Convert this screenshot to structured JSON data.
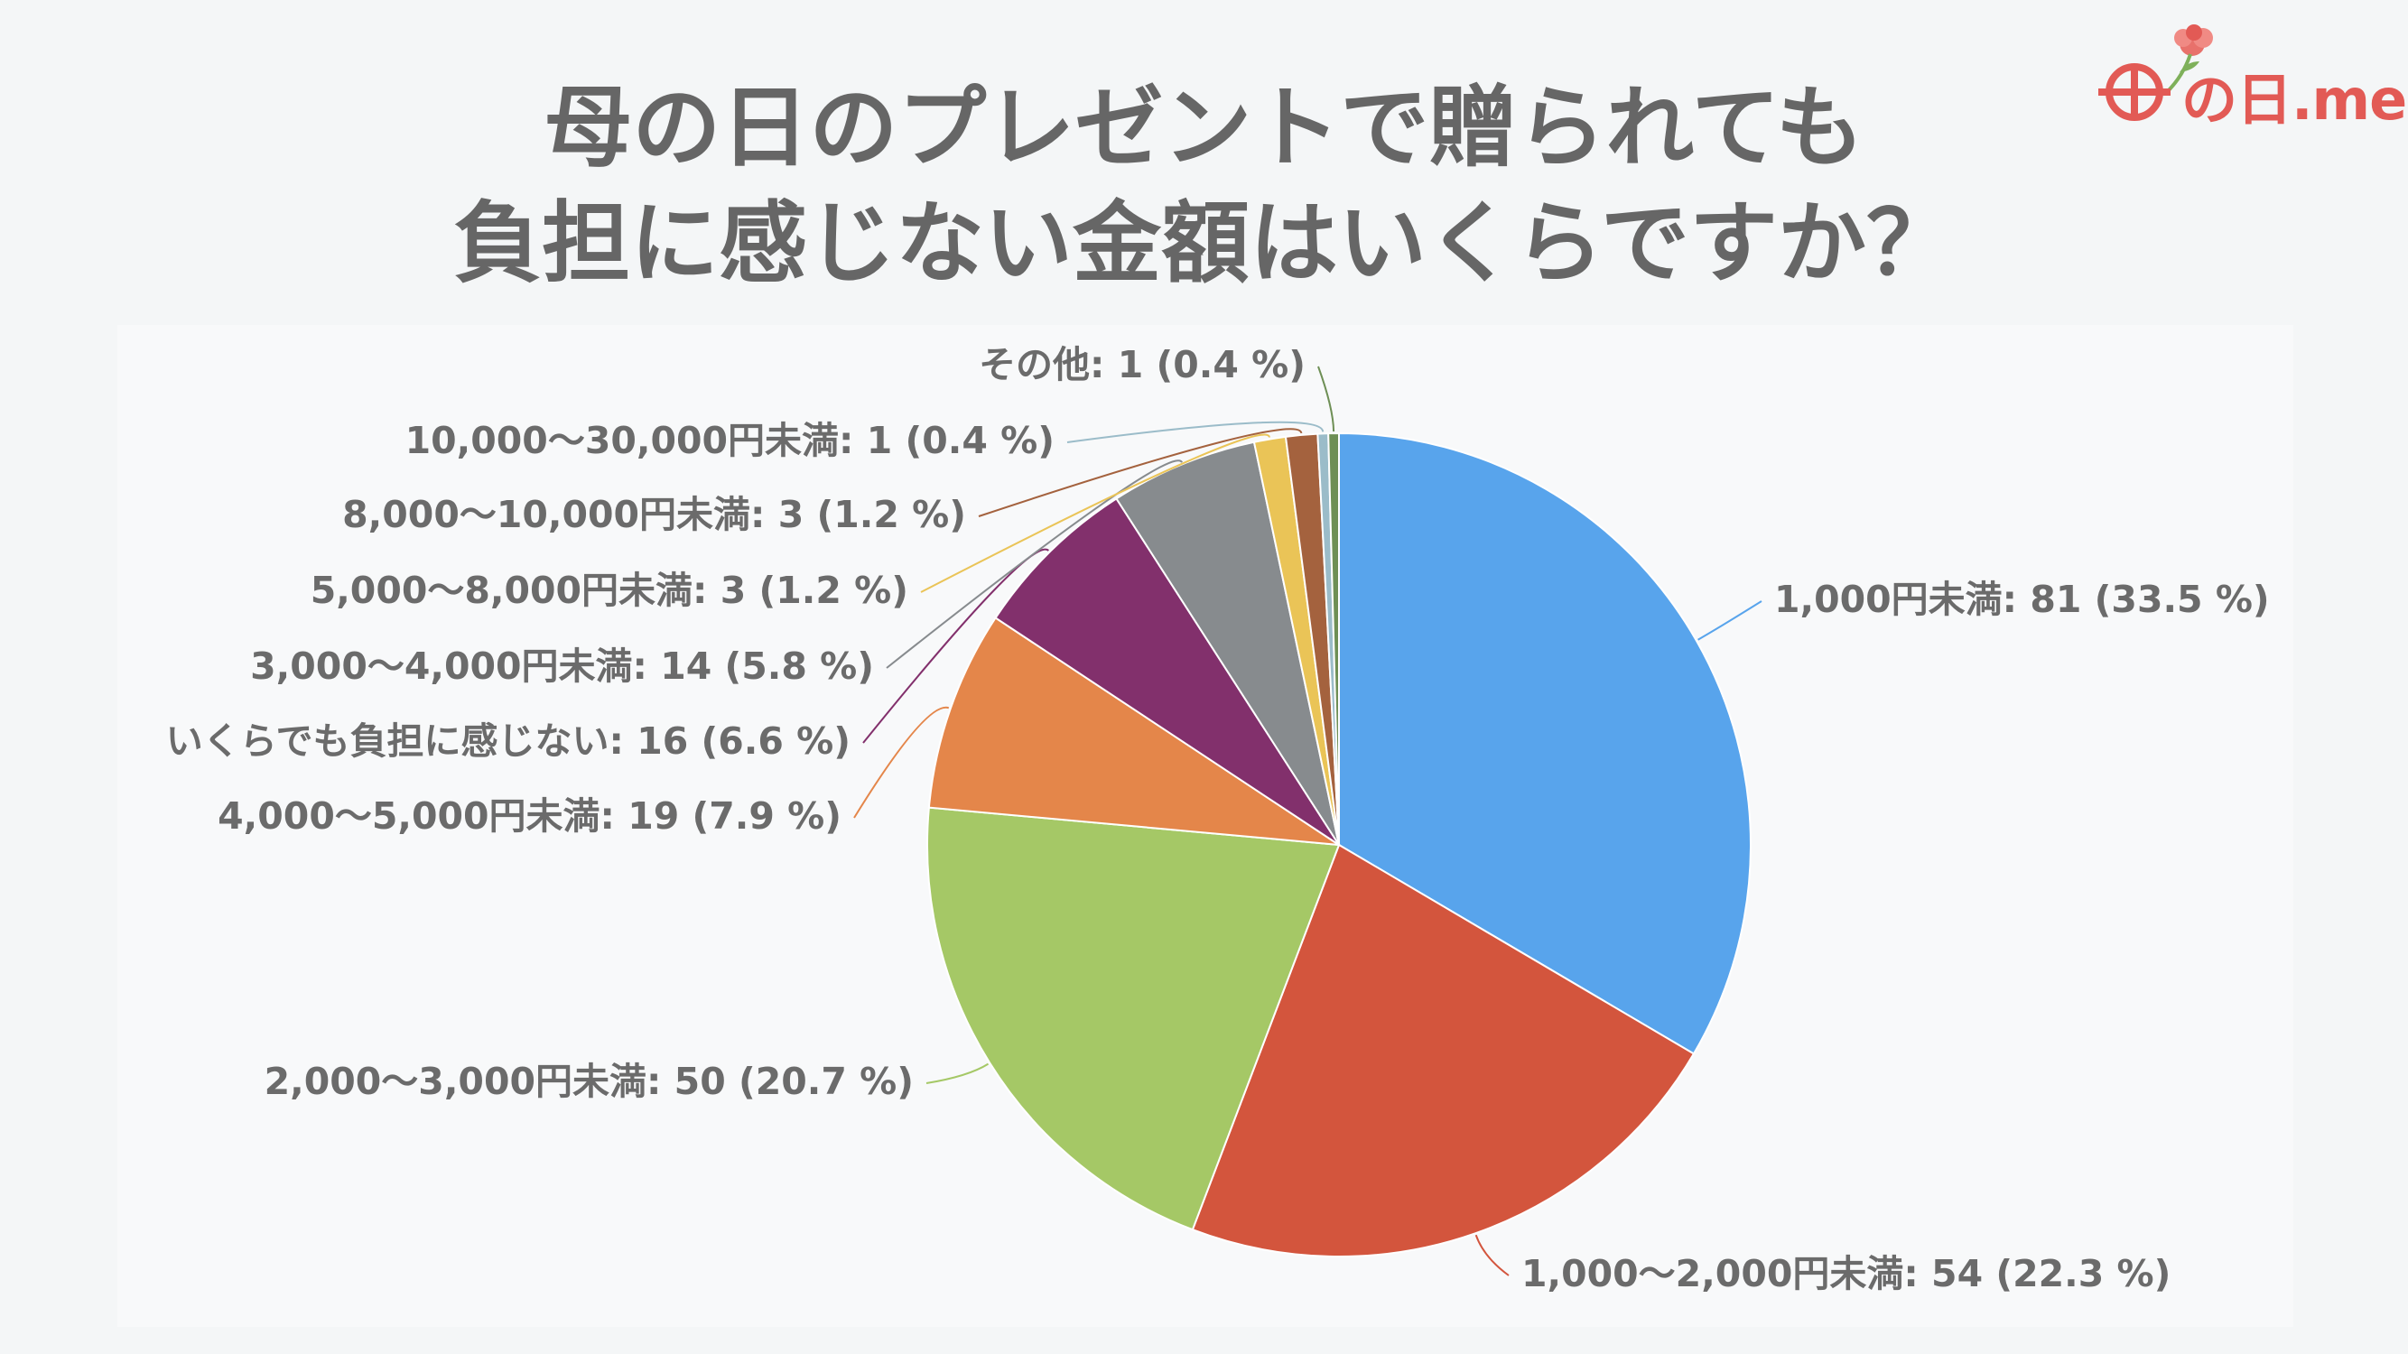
{
  "title": {
    "line1": "母の日のプレゼントで贈られても",
    "line2": "負担に感じない金額はいくらですか？"
  },
  "logo": {
    "text": "の日.me",
    "icon": "carnation-icon",
    "color": "#e25a55"
  },
  "chart_data": {
    "type": "pie",
    "start_angle_deg": 0,
    "direction": "clockwise",
    "slices": [
      {
        "label": "1,000円未満: 81 (33.5 %)",
        "name": "1,000円未満",
        "value": 81,
        "percent": 33.5,
        "color": "#58a4ec"
      },
      {
        "label": "1,000～2,000円未満: 54 (22.3 %)",
        "name": "1,000～2,000円未満",
        "value": 54,
        "percent": 22.3,
        "color": "#d3553d"
      },
      {
        "label": "2,000～3,000円未満: 50 (20.7 %)",
        "name": "2,000～3,000円未満",
        "value": 50,
        "percent": 20.7,
        "color": "#a5c866"
      },
      {
        "label": "4,000～5,000円未満: 19 (7.9 %)",
        "name": "4,000～5,000円未満",
        "value": 19,
        "percent": 7.9,
        "color": "#e4864a"
      },
      {
        "label": "いくらでも負担に感じない: 16 (6.6 %)",
        "name": "いくらでも負担に感じない",
        "value": 16,
        "percent": 6.6,
        "color": "#82306c"
      },
      {
        "label": "3,000～4,000円未満: 14 (5.8 %)",
        "name": "3,000～4,000円未満",
        "value": 14,
        "percent": 5.8,
        "color": "#878b8e"
      },
      {
        "label": "5,000～8,000円未満: 3 (1.2 %)",
        "name": "5,000～8,000円未満",
        "value": 3,
        "percent": 1.2,
        "color": "#eac457"
      },
      {
        "label": "8,000～10,000円未満: 3 (1.2 %)",
        "name": "8,000～10,000円未満",
        "value": 3,
        "percent": 1.2,
        "color": "#a4623e"
      },
      {
        "label": "10,000～30,000円未満: 1 (0.4 %)",
        "name": "10,000～30,000円未満",
        "value": 1,
        "percent": 0.4,
        "color": "#9bbcc9"
      },
      {
        "label": "その他: 1 (0.4 %)",
        "name": "その他",
        "value": 1,
        "percent": 0.4,
        "color": "#6e8f55"
      }
    ]
  }
}
